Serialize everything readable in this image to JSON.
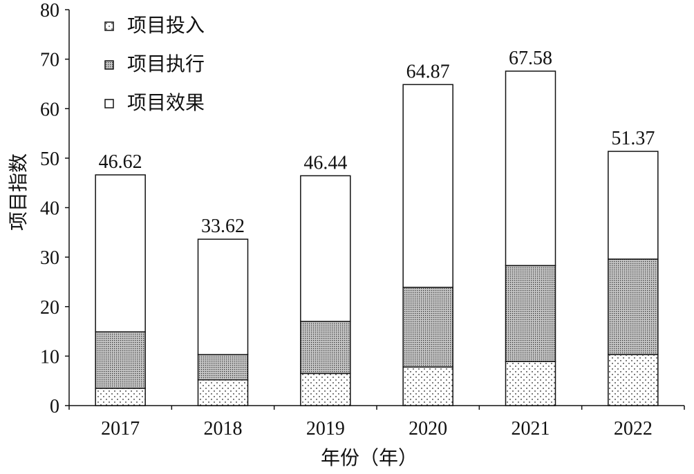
{
  "chart_data": {
    "type": "bar",
    "stacked": true,
    "title": "",
    "xlabel": "年份（年）",
    "ylabel": "项目指数",
    "ylim": [
      0,
      80
    ],
    "yticks": [
      0,
      10,
      20,
      30,
      40,
      50,
      60,
      70,
      80
    ],
    "categories": [
      "2017",
      "2018",
      "2019",
      "2020",
      "2021",
      "2022"
    ],
    "series": [
      {
        "name": "项目投入",
        "values": [
          3.5,
          5.2,
          6.5,
          7.8,
          8.9,
          10.3
        ],
        "pattern": "dots"
      },
      {
        "name": "项目执行",
        "values": [
          11.4,
          5.1,
          10.5,
          16.1,
          19.4,
          19.3
        ],
        "pattern": "dense-dots"
      },
      {
        "name": "项目效果",
        "values": [
          31.72,
          23.32,
          29.44,
          40.97,
          39.28,
          21.77
        ],
        "pattern": "white"
      }
    ],
    "totals_labels": [
      "46.62",
      "33.62",
      "46.44",
      "64.87",
      "67.58",
      "51.37"
    ],
    "legend_position": "top-left",
    "grid": false
  }
}
